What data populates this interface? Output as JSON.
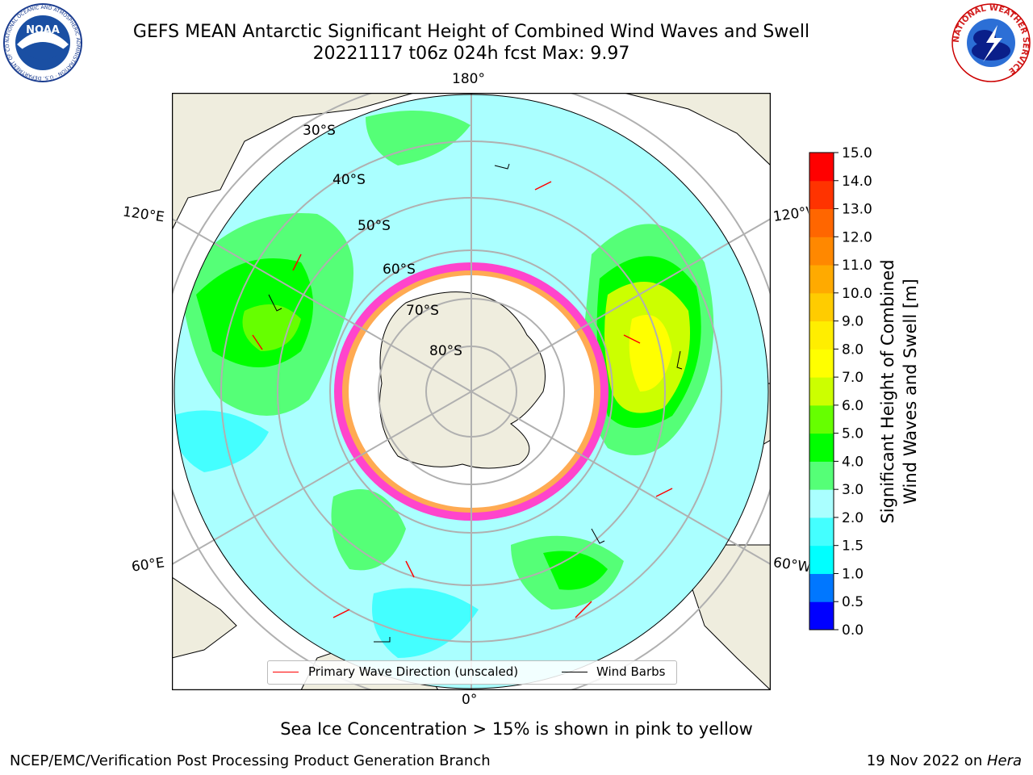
{
  "header": {
    "title_line1": "GEFS MEAN Antarctic Significant Height of Combined Wind Waves and Swell",
    "title_line2": "20221117 t06z 024h fcst   Max: 9.97"
  },
  "logos": {
    "noaa_text": "NOAA",
    "noaa_ring": "NATIONAL OCEANIC AND ATMOSPHERIC ADMINISTRATION · U.S. DEPARTMENT OF COMMERCE",
    "nws_ring": "NATIONAL WEATHER SERVICE"
  },
  "map": {
    "lon_labels": {
      "top": "180°",
      "bottom": "0°",
      "upper_left": "120°E",
      "upper_right": "120°W",
      "lower_left": "60°E",
      "lower_right": "60°W"
    },
    "lat_labels": [
      "30°S",
      "40°S",
      "50°S",
      "60°S",
      "70°S",
      "80°S"
    ],
    "colors": {
      "land": "#efedde",
      "ice_interior": "#ffffff",
      "sea_ice": "#ff44cc",
      "wave_arrow": "#ff0000",
      "wind_barb": "#000000"
    }
  },
  "colorbar": {
    "ticks": [
      "0.0",
      "0.5",
      "1.0",
      "1.5",
      "2.0",
      "3.0",
      "4.0",
      "5.0",
      "6.0",
      "7.0",
      "8.0",
      "9.0",
      "10.0",
      "11.0",
      "12.0",
      "13.0",
      "14.0",
      "15.0"
    ],
    "colors": [
      "#0000ff",
      "#0077ff",
      "#00ffff",
      "#44ffff",
      "#aaffff",
      "#55ff77",
      "#00ff00",
      "#66ff00",
      "#ccff00",
      "#ffff00",
      "#ffee00",
      "#ffcc00",
      "#ffaa00",
      "#ff8800",
      "#ff6600",
      "#ff3300",
      "#ff0000"
    ],
    "label_line1": "Significant Height of Combined",
    "label_line2": "Wind Waves and Swell [m]"
  },
  "legend": {
    "wave_label": "Primary Wave Direction (unscaled)",
    "wind_label": "Wind Barbs"
  },
  "footer": {
    "ice_note": "Sea Ice Concentration > 15% is shown in pink to yellow",
    "left": "NCEP/EMC/Verification Post Processing Product Generation Branch",
    "right_date": "19 Nov 2022 on ",
    "right_host": "Hera"
  }
}
